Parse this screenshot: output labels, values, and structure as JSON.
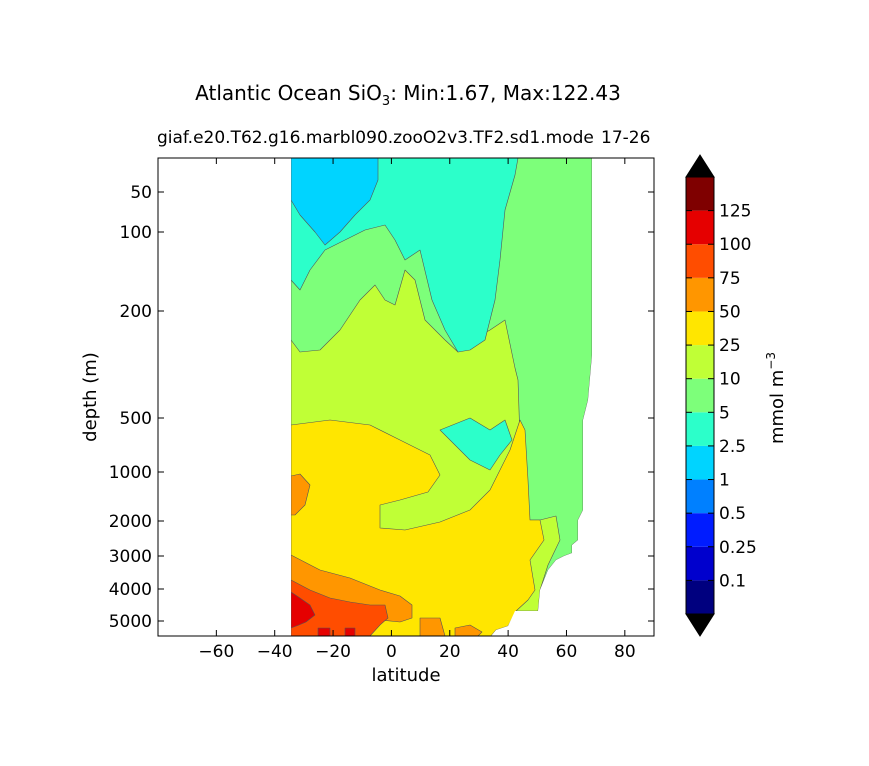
{
  "chart_data": {
    "type": "contourf",
    "title_main": "Atlantic Ocean SiO",
    "title_sub": "3",
    "title_rest": ": Min:1.67, Max:122.43",
    "subtitle_left": "giaf.e20.T62.g16.marbl090.zooO2v3.TF2.sd1.mode",
    "subtitle_overlap": "17-26",
    "xlabel": "latitude",
    "ylabel": "depth (m)",
    "xlim": [
      -80,
      90
    ],
    "xticks": [
      -60,
      -40,
      -20,
      0,
      20,
      40,
      60,
      80
    ],
    "xtick_labels": [
      "−60",
      "−40",
      "−20",
      "0",
      "20",
      "40",
      "60",
      "80"
    ],
    "yticks": [
      50,
      100,
      200,
      500,
      1000,
      2000,
      3000,
      4000,
      5000
    ],
    "ytick_labels": [
      "50",
      "100",
      "200",
      "500",
      "1000",
      "2000",
      "3000",
      "4000",
      "5000"
    ],
    "colorbar": {
      "label": "mmol m",
      "label_exp": "−3",
      "levels": [
        "0.1",
        "0.25",
        "0.5",
        "1",
        "2.5",
        "5",
        "10",
        "25",
        "50",
        "75",
        "100",
        "125"
      ],
      "colors": [
        "#00007f",
        "#0000cd",
        "#001cff",
        "#0080ff",
        "#00d4ff",
        "#2cffca",
        "#7dff7a",
        "#c0ff36",
        "#ffe600",
        "#ff9600",
        "#ff4d00",
        "#e50000",
        "#7f0000"
      ],
      "extend": "both"
    },
    "regions": [
      {
        "band": "1-2.5",
        "color": "#00d4ff",
        "where": "near-surface, 35S to 5S, upper 100 m"
      },
      {
        "band": "2.5-5",
        "color": "#2cffca",
        "where": "upper ocean south of equator; subsurface 20N-40N"
      },
      {
        "band": "5-10",
        "color": "#7dff7a",
        "where": "surface north of 35N; deep 45N-65N"
      },
      {
        "band": "10-25",
        "color": "#c0ff36",
        "where": "200-500 m, 35S to 40N; deep north of 45N"
      },
      {
        "band": "25-50",
        "color": "#ffe600",
        "where": "500-4000 m, 35S to 45N"
      },
      {
        "band": "50-75",
        "color": "#ff9600",
        "where": "bottom water south of 10N"
      },
      {
        "band": "75-100",
        "color": "#ff4d00",
        "where": "bottom water 30S to 5S"
      },
      {
        "band": "100-125",
        "color": "#e50000",
        "where": "deepest bottom water 35S to 20S"
      }
    ]
  }
}
